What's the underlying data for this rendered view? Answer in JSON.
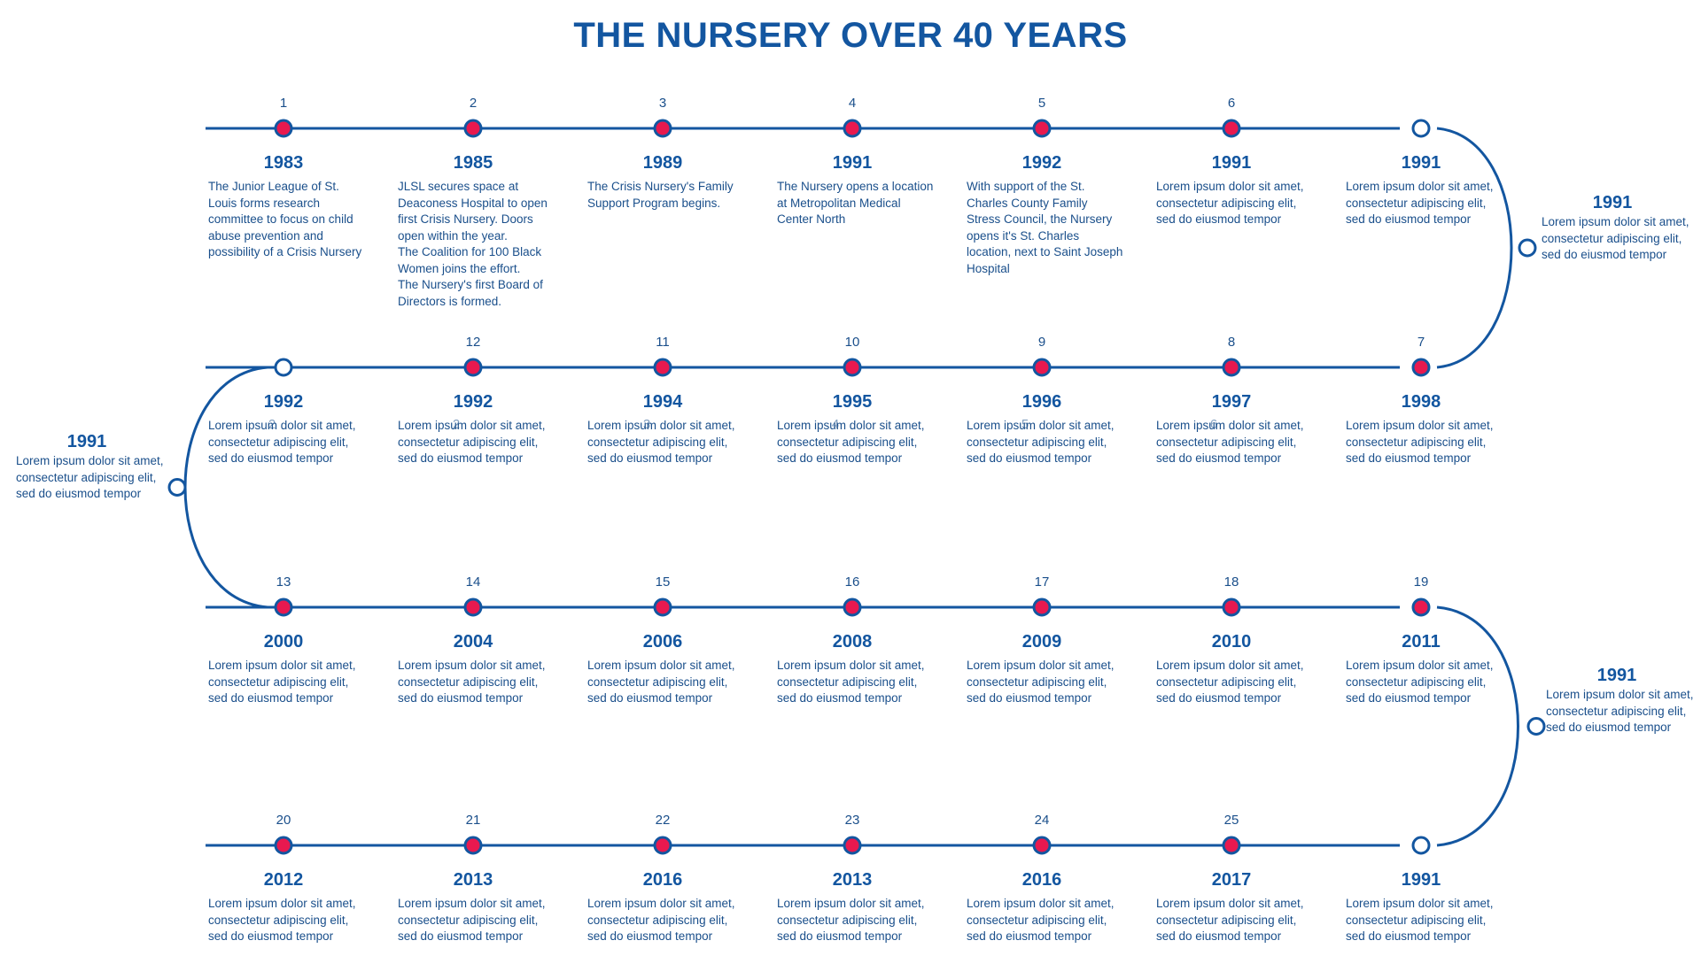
{
  "title": "THE NURSERY OVER 40 YEARS",
  "colors": {
    "line": "#1356a0",
    "dot_fill": "#e8194f",
    "dot_stroke": "#1356a0",
    "hollow_fill": "#ffffff"
  },
  "rows": [
    {
      "label": "row-1",
      "items": [
        {
          "num": "1",
          "year": "1983",
          "desc": "The Junior League of St. Louis forms research committee to focus on child abuse prevention and possibility of a Crisis Nursery"
        },
        {
          "num": "2",
          "year": "1985",
          "desc": "JLSL secures space at Deaconess Hospital to open first Crisis Nursery. Doors open within the year.\nThe Coalition for 100 Black Women joins the effort.\nThe Nursery's first Board of Directors is formed."
        },
        {
          "num": "3",
          "year": "1989",
          "desc": "The Crisis Nursery's Family Support Program begins."
        },
        {
          "num": "4",
          "year": "1991",
          "desc": "The Nursery opens a location at Metropolitan Medical Center North"
        },
        {
          "num": "5",
          "year": "1992",
          "desc": "With support of the St. Charles County Family Stress Council, the Nursery opens it's St. Charles location, next to Saint Joseph Hospital"
        },
        {
          "num": "6",
          "year": "1991",
          "desc": "Lorem ipsum dolor sit amet, consectetur adipiscing elit, sed do eiusmod tempor"
        },
        {
          "num": "",
          "year": "1991",
          "desc": "Lorem ipsum dolor sit amet, consectetur adipiscing elit, sed do eiusmod tempor"
        }
      ]
    },
    {
      "label": "row-2",
      "items": [
        {
          "num": "",
          "year": "1992",
          "desc": "Lorem ipsum dolor sit amet, consectetur adipiscing elit, sed do eiusmod tempor"
        },
        {
          "num": "12",
          "year": "1992",
          "desc": "Lorem ipsum dolor sit amet, consectetur adipiscing elit, sed do eiusmod tempor"
        },
        {
          "num": "11",
          "year": "1994",
          "desc": "Lorem ipsum dolor sit amet, consectetur adipiscing elit, sed do eiusmod tempor"
        },
        {
          "num": "10",
          "year": "1995",
          "desc": "Lorem ipsum dolor sit amet, consectetur adipiscing elit, sed do eiusmod tempor"
        },
        {
          "num": "9",
          "year": "1996",
          "desc": "Lorem ipsum dolor sit amet, consectetur adipiscing elit, sed do eiusmod tempor"
        },
        {
          "num": "8",
          "year": "1997",
          "desc": "Lorem ipsum dolor sit amet, consectetur adipiscing elit, sed do eiusmod tempor"
        },
        {
          "num": "7",
          "year": "1998",
          "desc": "Lorem ipsum dolor sit amet, consectetur adipiscing elit, sed do eiusmod tempor"
        }
      ]
    },
    {
      "label": "row-3",
      "items": [
        {
          "num": "13",
          "year": "2000",
          "desc": "Lorem ipsum dolor sit amet, consectetur adipiscing elit, sed do eiusmod tempor"
        },
        {
          "num": "14",
          "year": "2004",
          "desc": "Lorem ipsum dolor sit amet, consectetur adipiscing elit, sed do eiusmod tempor"
        },
        {
          "num": "15",
          "year": "2006",
          "desc": "Lorem ipsum dolor sit amet, consectetur adipiscing elit, sed do eiusmod tempor"
        },
        {
          "num": "16",
          "year": "2008",
          "desc": "Lorem ipsum dolor sit amet, consectetur adipiscing elit, sed do eiusmod tempor"
        },
        {
          "num": "17",
          "year": "2009",
          "desc": "Lorem ipsum dolor sit amet, consectetur adipiscing elit, sed do eiusmod tempor"
        },
        {
          "num": "18",
          "year": "2010",
          "desc": "Lorem ipsum dolor sit amet, consectetur adipiscing elit, sed do eiusmod tempor"
        },
        {
          "num": "19",
          "year": "2011",
          "desc": "Lorem ipsum dolor sit amet, consectetur adipiscing elit, sed do eiusmod tempor"
        }
      ]
    },
    {
      "label": "row-4",
      "items": [
        {
          "num": "20",
          "year": "2012",
          "desc": "Lorem ipsum dolor sit amet, consectetur adipiscing elit, sed do eiusmod tempor"
        },
        {
          "num": "21",
          "year": "2013",
          "desc": "Lorem ipsum dolor sit amet, consectetur adipiscing elit, sed do eiusmod tempor"
        },
        {
          "num": "22",
          "year": "2016",
          "desc": "Lorem ipsum dolor sit amet, consectetur adipiscing elit, sed do eiusmod tempor"
        },
        {
          "num": "23",
          "year": "2013",
          "desc": "Lorem ipsum dolor sit amet, consectetur adipiscing elit, sed do eiusmod tempor"
        },
        {
          "num": "24",
          "year": "2016",
          "desc": "Lorem ipsum dolor sit amet, consectetur adipiscing elit, sed do eiusmod tempor"
        },
        {
          "num": "25",
          "year": "2017",
          "desc": "Lorem ipsum dolor sit amet, consectetur adipiscing elit, sed do eiusmod tempor"
        },
        {
          "num": "",
          "year": "1991",
          "desc": "Lorem ipsum dolor sit amet, consectetur adipiscing elit, sed do eiusmod tempor"
        }
      ]
    }
  ],
  "curves": [
    {
      "year": "1991",
      "desc": "Lorem ipsum dolor sit amet, consectetur adipiscing elit, sed do eiusmod tempor"
    },
    {
      "year": "1991",
      "desc": "Lorem ipsum dolor sit amet, consectetur adipiscing elit, sed do eiusmod tempor"
    },
    {
      "year": "1991",
      "desc": "Lorem ipsum dolor sit amet, consectetur adipiscing elit, sed do eiusmod tempor"
    }
  ],
  "overlay_digits": [
    "2",
    "2",
    "3",
    "4",
    "5",
    "6"
  ]
}
